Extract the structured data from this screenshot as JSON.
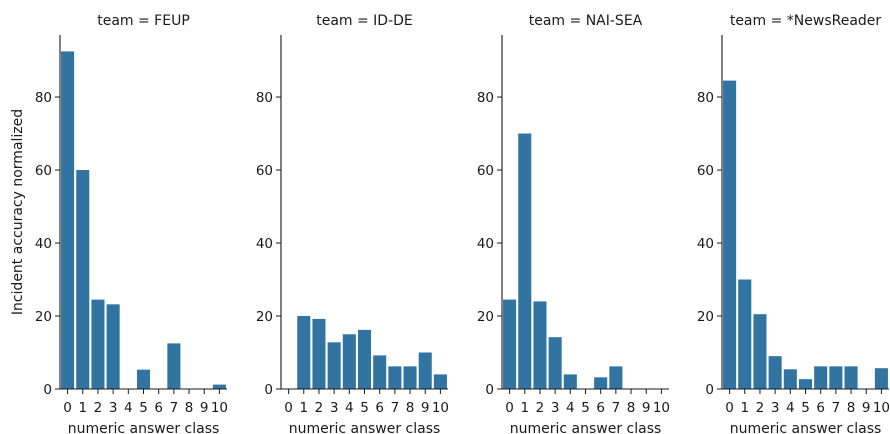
{
  "chart_data": {
    "type": "bar",
    "facet_label_prefix": "team = ",
    "facets": [
      {
        "team": "FEUP",
        "values": [
          92.5,
          60,
          24.5,
          23.2,
          0,
          5.3,
          0,
          12.5,
          0,
          0,
          1.2
        ]
      },
      {
        "team": "ID-DE",
        "values": [
          0,
          20,
          19.2,
          12.8,
          15,
          16.2,
          9.2,
          6.2,
          6.2,
          10,
          4
        ]
      },
      {
        "team": "NAI-SEA",
        "values": [
          24.5,
          70,
          24,
          14.2,
          4,
          0,
          3.2,
          6.2,
          0,
          0,
          0
        ]
      },
      {
        "team": "*NewsReader",
        "values": [
          84.5,
          30,
          20.5,
          9,
          5.4,
          2.7,
          6.2,
          6.2,
          6.2,
          0,
          5.7
        ]
      }
    ],
    "categories": [
      "0",
      "1",
      "2",
      "3",
      "4",
      "5",
      "6",
      "7",
      "8",
      "9",
      "10"
    ],
    "xlabel": "numeric answer class",
    "ylabel": "Incident accuracy normalized",
    "ylim": [
      0,
      97
    ],
    "yticks": [
      0,
      20,
      40,
      60,
      80
    ],
    "bar_color": "#3274a1",
    "grid": false,
    "legend": "none"
  }
}
